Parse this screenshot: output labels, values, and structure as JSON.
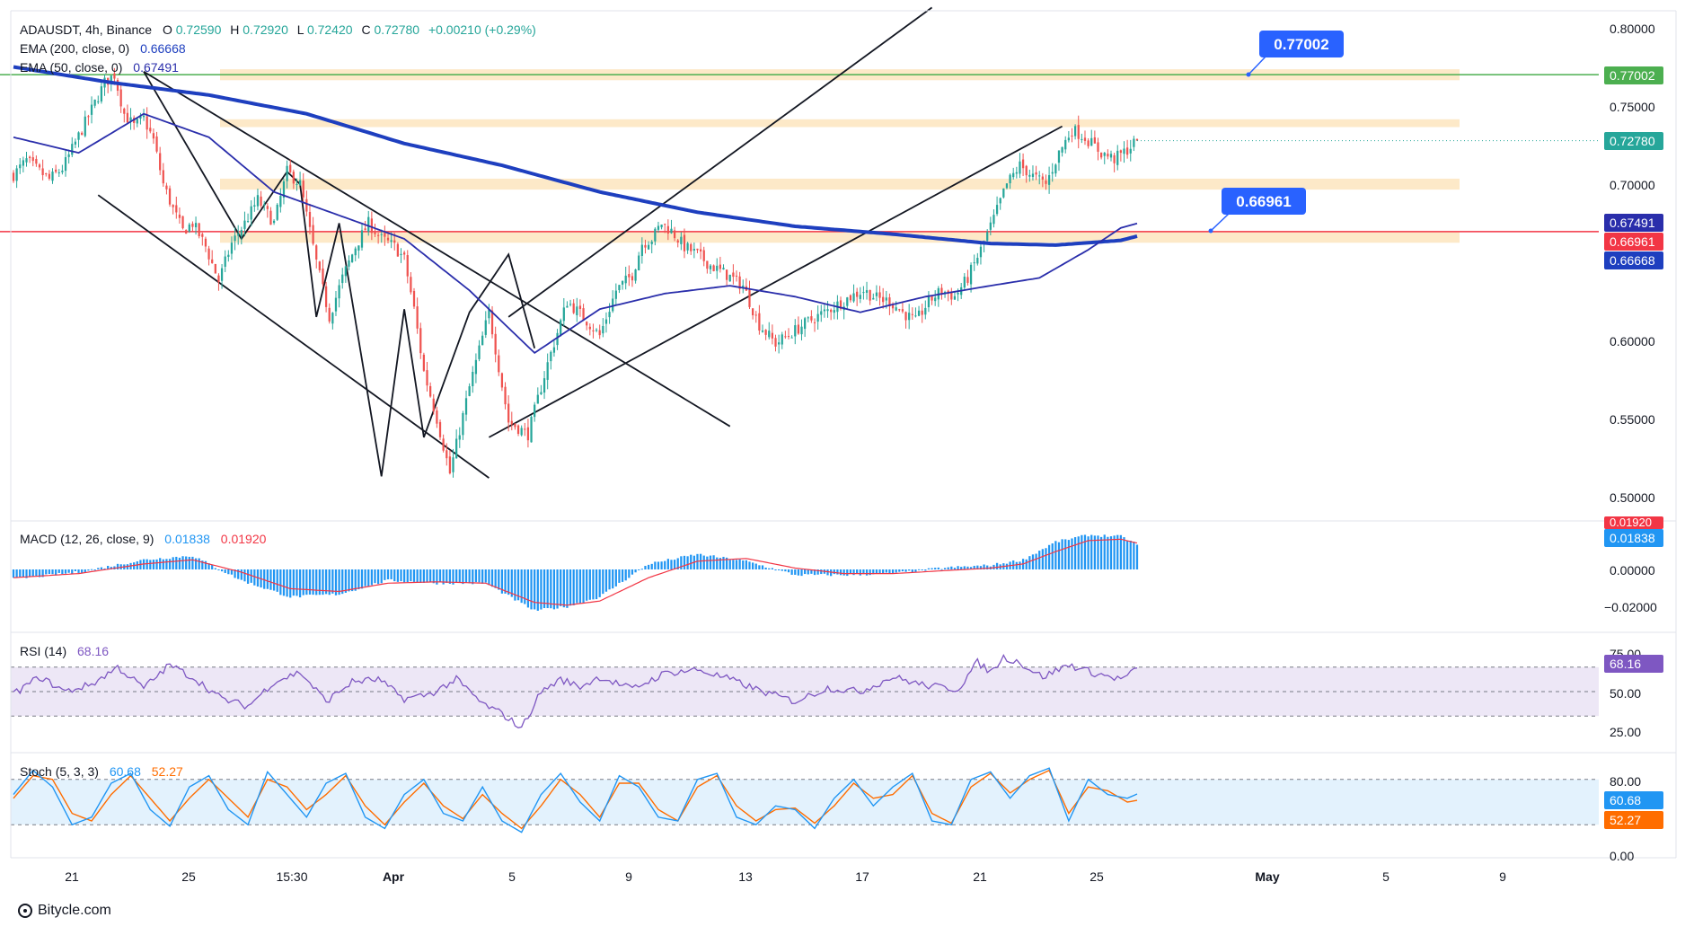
{
  "header": {
    "symbol": "ADAUSDT, 4h, Binance",
    "open_label": "O",
    "open": "0.72590",
    "high_label": "H",
    "high": "0.72920",
    "low_label": "L",
    "low": "0.72420",
    "close_label": "C",
    "close": "0.72780",
    "change": "+0.00210 (+0.29%)",
    "ema200_label": "EMA (200, close, 0)",
    "ema200_value": "0.66668",
    "ema50_label": "EMA (50, close, 0)",
    "ema50_value": "0.67491"
  },
  "colors": {
    "up": "#26a69a",
    "down": "#ef5350",
    "ema200": "#1e3fbf",
    "ema50": "#2a2eab",
    "zone": "#fde9c8",
    "resistance": "#4caf50",
    "support": "#f23645",
    "callout": "#2962ff",
    "macd_hist": "#2196f3",
    "signal": "#f23645",
    "rsi": "#7e57c2",
    "rsi_band": "#ede7f6",
    "stoch_k": "#2196f3",
    "stoch_d": "#ff6d00",
    "stoch_band": "#e3f2fd"
  },
  "callouts": {
    "resistance": "0.77002",
    "support": "0.66961"
  },
  "price_axis": {
    "ticks": [
      "0.80000",
      "0.75000",
      "0.70000",
      "0.60000",
      "0.55000",
      "0.50000"
    ],
    "badges": {
      "resistance": "0.77002",
      "last": "0.72780",
      "ema50": "0.67491",
      "support": "0.66961",
      "ema200": "0.66668"
    }
  },
  "macd": {
    "label": "MACD (12, 26, close, 9)",
    "macd_value": "0.01838",
    "signal_value": "0.01920",
    "ticks": [
      "0.00000",
      "−0.02000"
    ],
    "badges": {
      "macd": "0.01838",
      "signal": "0.01920"
    }
  },
  "rsi": {
    "label": "RSI (14)",
    "value": "68.16",
    "ticks": [
      "75.00",
      "50.00",
      "25.00"
    ],
    "badge": "68.16"
  },
  "stoch": {
    "label": "Stoch (5, 3, 3)",
    "k_value": "60.68",
    "d_value": "52.27",
    "ticks": [
      "80.00",
      "0.00"
    ],
    "badges": {
      "k": "60.68",
      "d": "52.27"
    }
  },
  "time_axis": {
    "labels": [
      "21",
      "25",
      "15:30",
      "Apr",
      "5",
      "9",
      "13",
      "17",
      "21",
      "25",
      "May",
      "5",
      "9"
    ]
  },
  "footer": {
    "brand": "Bitycle.com"
  },
  "chart_data": {
    "type": "candlestick",
    "symbol": "ADAUSDT",
    "interval": "4h",
    "exchange": "Binance",
    "ylim": [
      0.49,
      0.81
    ],
    "x_ticks": [
      "21",
      "25",
      "15:30",
      "Apr",
      "5",
      "9",
      "13",
      "17",
      "21",
      "25",
      "May",
      "5",
      "9"
    ],
    "y_ticks": [
      0.8,
      0.75,
      0.7,
      0.6,
      0.55,
      0.5
    ],
    "price_path": {
      "x": [
        0,
        4,
        8,
        11,
        15,
        17,
        21,
        25,
        28,
        31,
        34,
        37,
        40,
        43,
        46,
        49,
        52,
        55,
        59,
        63,
        67,
        71,
        75,
        80,
        84,
        88,
        93,
        97,
        101,
        105,
        109,
        113,
        117,
        120,
        123,
        126,
        130,
        134,
        140,
        146,
        152,
        158,
        164,
        170,
        175,
        180,
        185,
        190,
        193,
        196,
        199,
        202,
        206,
        210,
        214,
        219,
        224,
        229,
        234,
        239,
        244,
        249,
        253,
        257,
        261,
        265,
        269,
        273,
        277,
        281,
        285,
        289,
        293,
        297,
        301,
        305,
        309,
        313,
        317,
        321,
        325,
        329,
        334,
        338,
        342,
        345
      ],
      "close": [
        0.706,
        0.715,
        0.708,
        0.703,
        0.71,
        0.718,
        0.735,
        0.752,
        0.765,
        0.77,
        0.745,
        0.737,
        0.742,
        0.728,
        0.7,
        0.684,
        0.67,
        0.675,
        0.66,
        0.638,
        0.662,
        0.675,
        0.69,
        0.675,
        0.708,
        0.7,
        0.65,
        0.615,
        0.64,
        0.66,
        0.675,
        0.665,
        0.66,
        0.652,
        0.62,
        0.58,
        0.55,
        0.515,
        0.57,
        0.618,
        0.548,
        0.54,
        0.585,
        0.625,
        0.615,
        0.603,
        0.632,
        0.642,
        0.662,
        0.665,
        0.675,
        0.67,
        0.66,
        0.655,
        0.648,
        0.642,
        0.635,
        0.61,
        0.598,
        0.605,
        0.612,
        0.618,
        0.623,
        0.628,
        0.632,
        0.627,
        0.625,
        0.618,
        0.612,
        0.625,
        0.632,
        0.628,
        0.64,
        0.658,
        0.678,
        0.7,
        0.712,
        0.705,
        0.7,
        0.72,
        0.735,
        0.73,
        0.72,
        0.716,
        0.722,
        0.7278
      ]
    },
    "ema200": {
      "x": [
        0,
        30,
        60,
        90,
        120,
        150,
        180,
        210,
        240,
        270,
        300,
        320,
        340,
        345
      ],
      "y": [
        0.775,
        0.765,
        0.757,
        0.745,
        0.726,
        0.712,
        0.695,
        0.682,
        0.673,
        0.668,
        0.662,
        0.661,
        0.664,
        0.6667
      ]
    },
    "ema50": {
      "x": [
        0,
        20,
        40,
        60,
        80,
        100,
        120,
        140,
        160,
        180,
        200,
        220,
        240,
        260,
        280,
        300,
        315,
        330,
        340,
        345
      ],
      "y": [
        0.73,
        0.72,
        0.745,
        0.73,
        0.695,
        0.68,
        0.665,
        0.632,
        0.592,
        0.62,
        0.63,
        0.635,
        0.628,
        0.618,
        0.628,
        0.635,
        0.64,
        0.658,
        0.672,
        0.6749
      ]
    },
    "zones": [
      {
        "low": 0.7665,
        "high": 0.7735
      },
      {
        "low": 0.7365,
        "high": 0.7415
      },
      {
        "low": 0.6965,
        "high": 0.7035
      },
      {
        "low": 0.6625,
        "high": 0.6695
      }
    ],
    "horizontal_levels": {
      "resistance": 0.77002,
      "support": 0.66961
    },
    "last_price": 0.7278,
    "macd": {
      "ylim": [
        -0.035,
        0.027
      ],
      "x": [
        0,
        20,
        40,
        55,
        70,
        85,
        100,
        115,
        130,
        145,
        160,
        170,
        180,
        195,
        210,
        225,
        240,
        255,
        270,
        285,
        300,
        310,
        320,
        330,
        340,
        345
      ],
      "hist": [
        -0.007,
        -0.002,
        0.007,
        0.01,
        -0.008,
        -0.02,
        -0.018,
        -0.008,
        -0.01,
        -0.01,
        -0.03,
        -0.027,
        -0.02,
        0.004,
        0.011,
        0.006,
        -0.004,
        -0.004,
        -0.003,
        0.001,
        0.003,
        0.007,
        0.02,
        0.025,
        0.024,
        0.0184
      ],
      "signal": [
        -0.006,
        -0.003,
        0.004,
        0.007,
        -0.002,
        -0.014,
        -0.016,
        -0.01,
        -0.009,
        -0.01,
        -0.024,
        -0.026,
        -0.023,
        -0.006,
        0.006,
        0.008,
        0.001,
        -0.003,
        -0.003,
        -0.001,
        0.001,
        0.004,
        0.013,
        0.021,
        0.022,
        0.0192
      ]
    },
    "rsi": {
      "ylim": [
        10,
        85
      ],
      "x": [
        0,
        8,
        16,
        24,
        32,
        40,
        48,
        56,
        64,
        72,
        80,
        88,
        96,
        104,
        112,
        120,
        128,
        136,
        144,
        150,
        156,
        162,
        168,
        174,
        180,
        190,
        200,
        210,
        220,
        230,
        240,
        250,
        260,
        270,
        280,
        290,
        296,
        300,
        304,
        308,
        316,
        324,
        332,
        340,
        345
      ],
      "y": [
        48,
        62,
        50,
        56,
        70,
        53,
        72,
        60,
        44,
        38,
        58,
        66,
        42,
        58,
        60,
        44,
        48,
        60,
        40,
        32,
        20,
        50,
        60,
        54,
        62,
        52,
        65,
        68,
        60,
        50,
        42,
        53,
        50,
        62,
        55,
        52,
        74,
        66,
        78,
        75,
        62,
        72,
        65,
        60,
        68.16
      ]
    },
    "stoch": {
      "ylim": [
        0,
        100
      ],
      "x": [
        0,
        6,
        12,
        18,
        24,
        30,
        36,
        42,
        48,
        54,
        60,
        66,
        72,
        78,
        84,
        90,
        96,
        102,
        108,
        114,
        120,
        126,
        132,
        138,
        144,
        150,
        156,
        162,
        168,
        174,
        180,
        186,
        192,
        198,
        204,
        210,
        216,
        222,
        228,
        234,
        240,
        246,
        252,
        258,
        264,
        270,
        276,
        282,
        288,
        294,
        300,
        306,
        312,
        318,
        324,
        330,
        336,
        342,
        345
      ],
      "k": [
        60,
        92,
        70,
        20,
        30,
        75,
        88,
        40,
        18,
        70,
        85,
        40,
        20,
        90,
        60,
        30,
        75,
        88,
        30,
        15,
        60,
        80,
        35,
        25,
        70,
        25,
        10,
        60,
        88,
        50,
        25,
        85,
        70,
        30,
        25,
        80,
        88,
        30,
        20,
        45,
        40,
        15,
        55,
        80,
        45,
        70,
        88,
        25,
        20,
        80,
        90,
        55,
        85,
        95,
        25,
        80,
        60,
        55,
        60.68
      ],
      "d": [
        55,
        85,
        80,
        35,
        25,
        60,
        85,
        55,
        25,
        55,
        80,
        55,
        30,
        80,
        70,
        40,
        60,
        85,
        45,
        20,
        50,
        75,
        45,
        28,
        60,
        35,
        15,
        45,
        80,
        60,
        30,
        75,
        75,
        40,
        25,
        70,
        85,
        45,
        25,
        40,
        42,
        22,
        45,
        75,
        55,
        60,
        85,
        35,
        22,
        70,
        88,
        62,
        80,
        92,
        35,
        70,
        65,
        50,
        52.27
      ]
    },
    "drawings": [
      {
        "name": "descending-channel-upper",
        "p1": [
          40,
          0.772
        ],
        "p2": [
          220,
          0.545
        ]
      },
      {
        "name": "descending-channel-lower",
        "p1": [
          26,
          0.693
        ],
        "p2": [
          146,
          0.512
        ]
      },
      {
        "name": "rising-channel-upper",
        "p1": [
          152,
          0.615
        ],
        "p2": [
          282,
          0.813
        ]
      },
      {
        "name": "rising-channel-lower",
        "p1": [
          146,
          0.538
        ],
        "p2": [
          322,
          0.737
        ]
      },
      {
        "name": "zigzag",
        "points": [
          [
            40,
            0.772
          ],
          [
            70,
            0.665
          ],
          [
            84,
            0.708
          ],
          [
            88,
            0.7
          ],
          [
            93,
            0.615
          ],
          [
            100,
            0.675
          ],
          [
            113,
            0.513
          ],
          [
            120,
            0.62
          ],
          [
            126,
            0.538
          ],
          [
            140,
            0.618
          ],
          [
            152,
            0.655
          ],
          [
            160,
            0.595
          ]
        ]
      }
    ]
  }
}
